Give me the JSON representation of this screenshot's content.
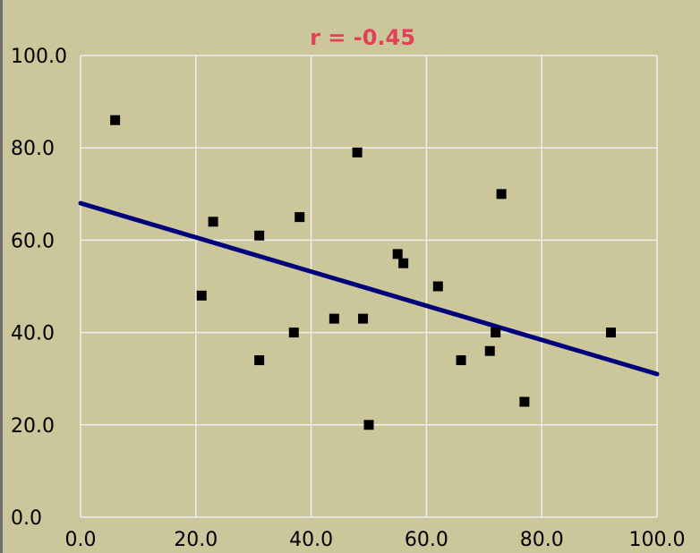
{
  "chart_data": {
    "type": "scatter",
    "title": "r = -0.45",
    "xlabel": "",
    "ylabel": "",
    "xlim": [
      0,
      100
    ],
    "ylim": [
      0,
      100
    ],
    "x_ticks": [
      "0.0",
      "20.0",
      "40.0",
      "60.0",
      "80.0",
      "100.0"
    ],
    "y_ticks": [
      "0.0",
      "20.0",
      "40.0",
      "60.0",
      "80.0",
      "100.0"
    ],
    "grid": true,
    "points": [
      {
        "x": 6,
        "y": 86
      },
      {
        "x": 21,
        "y": 48
      },
      {
        "x": 23,
        "y": 64
      },
      {
        "x": 31,
        "y": 61
      },
      {
        "x": 31,
        "y": 34
      },
      {
        "x": 37,
        "y": 40
      },
      {
        "x": 38,
        "y": 65
      },
      {
        "x": 44,
        "y": 43
      },
      {
        "x": 48,
        "y": 79
      },
      {
        "x": 49,
        "y": 43
      },
      {
        "x": 50,
        "y": 20
      },
      {
        "x": 55,
        "y": 57
      },
      {
        "x": 56,
        "y": 55
      },
      {
        "x": 62,
        "y": 50
      },
      {
        "x": 66,
        "y": 34
      },
      {
        "x": 71,
        "y": 36
      },
      {
        "x": 72,
        "y": 40
      },
      {
        "x": 73,
        "y": 70
      },
      {
        "x": 77,
        "y": 25
      },
      {
        "x": 92,
        "y": 40
      }
    ],
    "regression_line": {
      "x": [
        0,
        100
      ],
      "y": [
        68,
        31
      ]
    },
    "colors": {
      "background": "#cbc79b",
      "grid": "#eeeeee",
      "points": "#000000",
      "line": "#00007a",
      "title": "#e0405a"
    }
  }
}
